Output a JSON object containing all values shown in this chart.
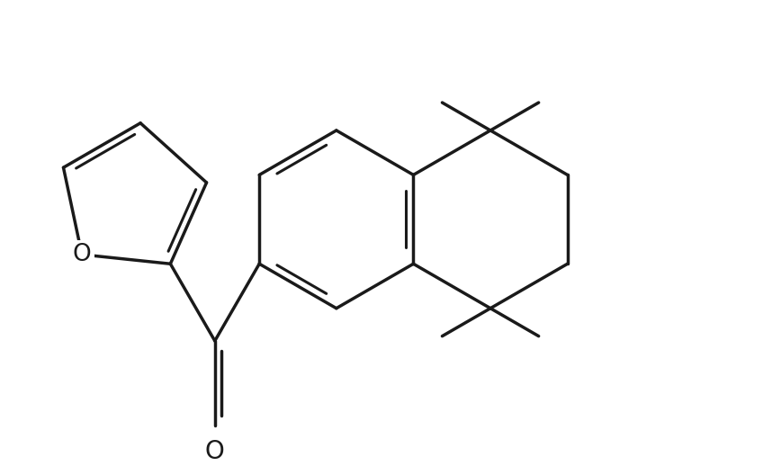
{
  "background_color": "#ffffff",
  "line_color": "#1a1a1a",
  "line_width": 2.5,
  "figsize": [
    8.68,
    5.18
  ],
  "dpi": 100
}
